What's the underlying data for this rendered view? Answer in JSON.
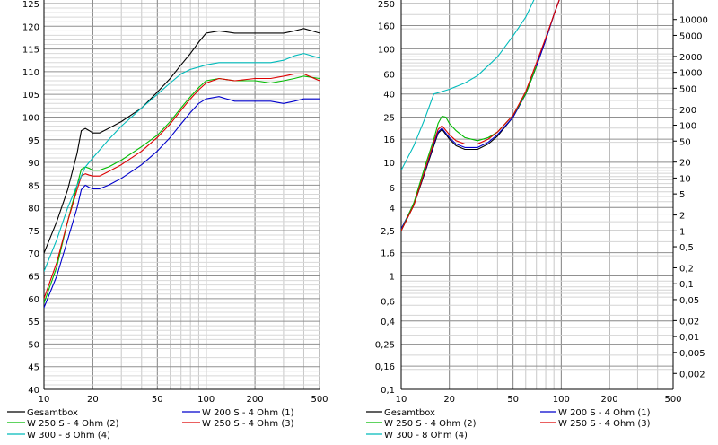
{
  "chart_data": [
    {
      "type": "line",
      "x_scale": "log",
      "y_scale": "linear",
      "xlim": [
        10,
        500
      ],
      "ylim": [
        40,
        125
      ],
      "grid": true,
      "legend_position": "bottom",
      "x_ticks": [
        "10",
        "20",
        "50",
        "100",
        "200",
        "500"
      ],
      "y_ticks": [
        "40",
        "45",
        "50",
        "55",
        "60",
        "65",
        "70",
        "75",
        "80",
        "85",
        "90",
        "95",
        "100",
        "105",
        "110",
        "115",
        "120",
        "125"
      ],
      "legend": [
        {
          "label": "Gesamtbox",
          "color": "#000000"
        },
        {
          "label": "W 200 S - 4 Ohm (1)",
          "color": "#0000CC"
        },
        {
          "label": "W 250 S -  4 Ohm (2)",
          "color": "#00BB00"
        },
        {
          "label": "W 250 S -  4 Ohm (3)",
          "color": "#DD0000"
        },
        {
          "label": "W 300 - 8 Ohm (4)",
          "color": "#00BBBB"
        }
      ],
      "series": [
        {
          "name": "Gesamtbox",
          "color": "#000000",
          "x": [
            10,
            12,
            14,
            16,
            17,
            18,
            19,
            20,
            22,
            25,
            30,
            40,
            50,
            60,
            70,
            80,
            90,
            100,
            120,
            150,
            200,
            250,
            300,
            350,
            400,
            450,
            500
          ],
          "y": [
            70,
            77,
            84,
            92,
            97,
            97.5,
            97,
            96.5,
            96.5,
            97.5,
            99,
            102,
            105.5,
            108.5,
            111.5,
            114,
            116.5,
            118.5,
            119,
            118.5,
            118.5,
            118.5,
            118.5,
            119,
            119.5,
            119,
            118.5
          ]
        },
        {
          "name": "W 200 S - 4 Ohm (1)",
          "color": "#0000CC",
          "x": [
            10,
            12,
            14,
            16,
            17,
            18,
            19,
            20,
            22,
            25,
            30,
            40,
            50,
            60,
            70,
            80,
            90,
            100,
            120,
            150,
            200,
            250,
            300,
            350,
            400,
            500
          ],
          "y": [
            58,
            65,
            73,
            80,
            84,
            85,
            84.5,
            84.2,
            84.2,
            85,
            86.5,
            89.5,
            92.5,
            95.5,
            98.5,
            101,
            103,
            104,
            104.5,
            103.5,
            103.5,
            103.5,
            103,
            103.5,
            104,
            104
          ]
        },
        {
          "name": "W 250 S -  4 Ohm (2)",
          "color": "#00BB00",
          "x": [
            10,
            12,
            14,
            16,
            17,
            18,
            19,
            20,
            22,
            25,
            30,
            40,
            50,
            60,
            70,
            80,
            90,
            100,
            120,
            150,
            200,
            250,
            300,
            350,
            400,
            500
          ],
          "y": [
            59,
            67,
            77,
            85,
            88.5,
            89,
            88.7,
            88.3,
            88.3,
            89,
            90.5,
            93.5,
            96,
            99,
            102,
            104.5,
            106.5,
            108,
            108.5,
            108,
            108,
            107.5,
            108,
            108.5,
            109,
            108.5
          ]
        },
        {
          "name": "W 250 S -  4 Ohm (3)",
          "color": "#DD0000",
          "x": [
            10,
            12,
            14,
            16,
            17,
            18,
            19,
            20,
            22,
            25,
            30,
            40,
            50,
            60,
            70,
            80,
            90,
            100,
            120,
            150,
            200,
            250,
            300,
            350,
            400,
            500
          ],
          "y": [
            60,
            68,
            77,
            84,
            87,
            87.5,
            87.2,
            87,
            87,
            88,
            89.5,
            92.5,
            95.5,
            98.5,
            101.5,
            104,
            106,
            107.5,
            108.5,
            108,
            108.5,
            108.5,
            109,
            109.5,
            109.5,
            108
          ]
        },
        {
          "name": "W 300 - 8 Ohm (4)",
          "color": "#00BBBB",
          "x": [
            10,
            12,
            14,
            16,
            18,
            20,
            25,
            30,
            40,
            50,
            60,
            70,
            80,
            90,
            100,
            120,
            150,
            200,
            250,
            300,
            350,
            400,
            500
          ],
          "y": [
            66,
            73,
            80,
            85,
            89,
            91,
            95,
            98,
            102,
            105,
            107.5,
            109.5,
            110.5,
            111,
            111.5,
            112,
            112,
            112,
            112,
            112.5,
            113.5,
            114,
            113
          ]
        }
      ]
    },
    {
      "type": "line",
      "x_scale": "log",
      "y_scale": "log",
      "xlim": [
        10,
        500
      ],
      "ylim": [
        0.1,
        250
      ],
      "grid": true,
      "legend_position": "bottom",
      "x_ticks": [
        "10",
        "20",
        "50",
        "100",
        "200",
        "500"
      ],
      "y_ticks": [
        {
          "label": "250",
          "value": 250
        },
        {
          "label": "160",
          "value": 160
        },
        {
          "label": "100",
          "value": 100
        },
        {
          "label": "60",
          "value": 60
        },
        {
          "label": "40",
          "value": 40
        },
        {
          "label": "25",
          "value": 25
        },
        {
          "label": "16",
          "value": 16
        },
        {
          "label": "10",
          "value": 10
        },
        {
          "label": "6",
          "value": 6
        },
        {
          "label": "4",
          "value": 4
        },
        {
          "label": "2,5",
          "value": 2.5
        },
        {
          "label": "1,6",
          "value": 1.6
        },
        {
          "label": "1",
          "value": 1
        },
        {
          "label": "0,6",
          "value": 0.6
        },
        {
          "label": "0,4",
          "value": 0.4
        },
        {
          "label": "0,25",
          "value": 0.25
        },
        {
          "label": "0,16",
          "value": 0.16
        },
        {
          "label": "0,1",
          "value": 0.1
        }
      ],
      "y2_ticks": [
        {
          "label": "10000",
          "value": 10000
        },
        {
          "label": "5000",
          "value": 5000
        },
        {
          "label": "2000",
          "value": 2000
        },
        {
          "label": "1000",
          "value": 1000
        },
        {
          "label": "500",
          "value": 500
        },
        {
          "label": "200",
          "value": 200
        },
        {
          "label": "100",
          "value": 100
        },
        {
          "label": "50",
          "value": 50
        },
        {
          "label": "20",
          "value": 20
        },
        {
          "label": "10",
          "value": 10
        },
        {
          "label": "5",
          "value": 5
        },
        {
          "label": "2",
          "value": 2
        },
        {
          "label": "1",
          "value": 1
        },
        {
          "label": "0,5",
          "value": 0.5
        },
        {
          "label": "0,2",
          "value": 0.2
        },
        {
          "label": "0,1",
          "value": 0.1
        },
        {
          "label": "0,05",
          "value": 0.05
        },
        {
          "label": "0,02",
          "value": 0.02
        },
        {
          "label": "0,01",
          "value": 0.01
        },
        {
          "label": "0,005",
          "value": 0.005
        },
        {
          "label": "0,002",
          "value": 0.002
        }
      ],
      "legend": [
        {
          "label": "Gesamtbox",
          "color": "#000000"
        },
        {
          "label": "W 200 S - 4 Ohm (1)",
          "color": "#0000CC"
        },
        {
          "label": "W 250 S -  4 Ohm (2)",
          "color": "#00BB00"
        },
        {
          "label": "W 250 S -  4 Ohm (3)",
          "color": "#DD0000"
        },
        {
          "label": "W 300 - 8 Ohm (4)",
          "color": "#00BBBB"
        }
      ],
      "series": [
        {
          "name": "Gesamtbox",
          "color": "#000000",
          "x": [
            10,
            12,
            14,
            16,
            17,
            18,
            20,
            22,
            25,
            30,
            35,
            40,
            50,
            60,
            70,
            80,
            90,
            100
          ],
          "y": [
            2.5,
            4.2,
            8,
            14,
            18,
            19.5,
            16,
            14,
            13,
            13,
            14.5,
            17,
            25,
            40,
            70,
            120,
            200,
            300
          ]
        },
        {
          "name": "W 200 S - 4 Ohm (1)",
          "color": "#0000CC",
          "x": [
            10,
            12,
            14,
            16,
            17,
            18,
            20,
            22,
            25,
            30,
            35,
            40,
            50,
            60,
            70,
            80,
            90,
            100
          ],
          "y": [
            2.6,
            4.3,
            8.2,
            14.5,
            18.5,
            20,
            16.5,
            14.5,
            13.5,
            13.5,
            15,
            17.5,
            25,
            40,
            70,
            120,
            200,
            300
          ]
        },
        {
          "name": "W 250 S -  4 Ohm (2)",
          "color": "#00BB00",
          "x": [
            10,
            12,
            14,
            16,
            17,
            18,
            19,
            20,
            22,
            25,
            30,
            35,
            40,
            50,
            60,
            70
          ],
          "y": [
            2.5,
            4.4,
            9,
            16,
            22,
            25.5,
            25,
            22,
            19,
            16.5,
            15.5,
            16.5,
            18.5,
            26,
            40,
            70
          ]
        },
        {
          "name": "W 250 S -  4 Ohm (3)",
          "color": "#DD0000",
          "x": [
            10,
            12,
            14,
            16,
            17,
            18,
            20,
            22,
            25,
            30,
            35,
            40,
            50,
            60,
            70,
            80,
            90,
            100
          ],
          "y": [
            2.5,
            4.2,
            8.4,
            15,
            19.5,
            21,
            17.5,
            15.5,
            14.5,
            14.5,
            16,
            18.5,
            26,
            42,
            75,
            125,
            200,
            300
          ]
        },
        {
          "name": "W 300 - 8 Ohm (4)",
          "color": "#00BBBB",
          "x": [
            10,
            12,
            14,
            16,
            17,
            20,
            25,
            30,
            40,
            50,
            60,
            70,
            80
          ],
          "y": [
            8.5,
            14,
            24,
            40,
            41,
            44,
            50,
            58,
            85,
            130,
            190,
            300,
            400
          ]
        }
      ]
    }
  ]
}
